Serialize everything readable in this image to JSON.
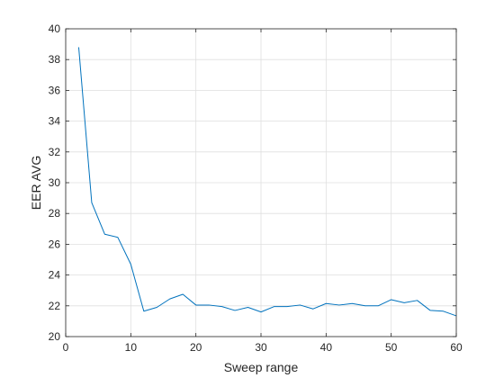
{
  "chart_data": {
    "type": "line",
    "xlabel": "Sweep range",
    "ylabel": "EER AVG",
    "xlim": [
      0,
      60
    ],
    "ylim": [
      20,
      40
    ],
    "x_ticks": [
      "0",
      "10",
      "20",
      "30",
      "40",
      "50",
      "60"
    ],
    "y_ticks": [
      "20",
      "22",
      "24",
      "26",
      "28",
      "30",
      "32",
      "34",
      "36",
      "38",
      "40"
    ],
    "grid": true,
    "series": [
      {
        "color": "#0072BD",
        "x": [
          2,
          4,
          6,
          8,
          10,
          12,
          14,
          16,
          18,
          20,
          22,
          24,
          26,
          28,
          30,
          32,
          34,
          36,
          38,
          40,
          42,
          44,
          46,
          48,
          50,
          52,
          54,
          56,
          58,
          60
        ],
        "y": [
          38.8,
          28.7,
          26.65,
          26.45,
          24.7,
          21.65,
          21.9,
          22.45,
          22.75,
          22.05,
          22.05,
          21.95,
          21.7,
          21.9,
          21.6,
          21.95,
          21.95,
          22.05,
          21.8,
          22.15,
          22.05,
          22.15,
          22.0,
          22.0,
          22.4,
          22.2,
          22.35,
          21.7,
          21.65,
          21.35
        ]
      }
    ]
  }
}
